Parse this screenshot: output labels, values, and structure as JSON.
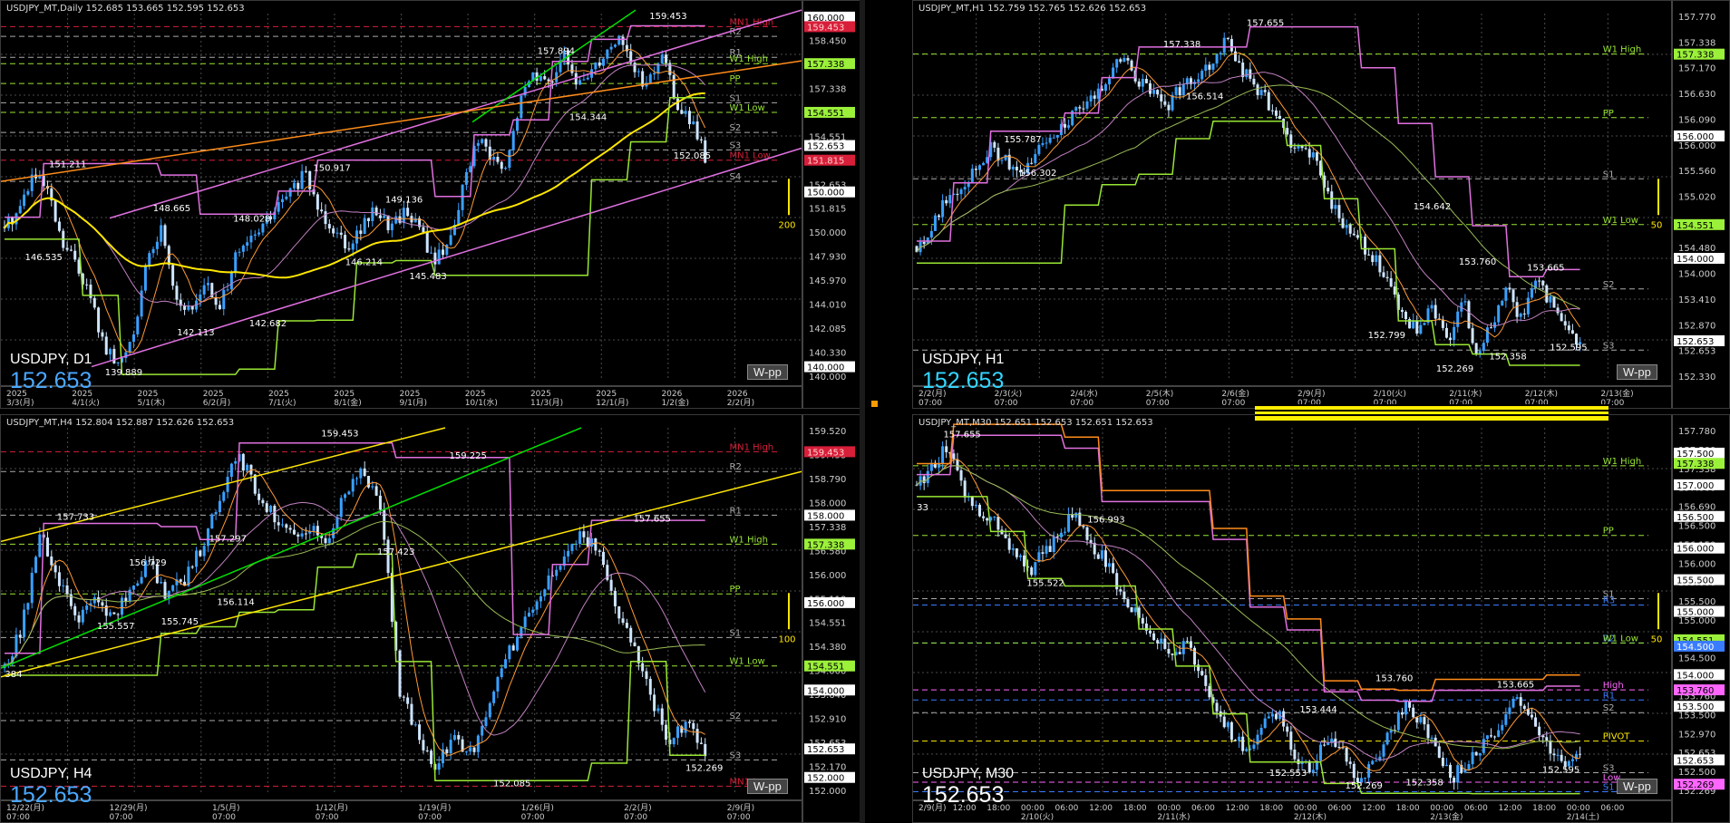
{
  "colors": {
    "bull": "#3aa0ff",
    "bear": "#cfe6ff",
    "green": "#99e633",
    "violet": "#e070e0",
    "yellow": "#ffe600",
    "orange": "#ff8c1a",
    "red": "#d81f3a",
    "lime": "#00e000",
    "grid": "#4a4a4a",
    "pink": "#ff66ff"
  },
  "charts": [
    {
      "id": "d1",
      "header": "USDJPY_MT,Daily  152.685 153.665 152.595 152.653",
      "symbol": "USDJPY, D1",
      "price": "152.653",
      "price_color": "blue",
      "wpp": "W-pp",
      "scale": {
        "max": 160.2,
        "min": 139.2
      },
      "axis": [
        "160.000",
        "158.450",
        "157.660",
        "157.338",
        "155.735",
        "154.551",
        "153.775",
        "152.653",
        "151.815",
        "150.000",
        "147.930",
        "145.970",
        "144.010",
        "142.085",
        "140.330",
        "140.000"
      ],
      "axis_boxes": [
        {
          "v": "160.000",
          "p": 160.0,
          "bg": "#ffffff",
          "fg": "#000"
        },
        {
          "v": "159.453",
          "p": 159.453,
          "bg": "#d81f3a",
          "fg": "#ffd0d0"
        },
        {
          "v": "157.338",
          "p": 157.338,
          "bg": "#9bf03a",
          "fg": "#000"
        },
        {
          "v": "154.551",
          "p": 154.551,
          "bg": "#9bf03a",
          "fg": "#000"
        },
        {
          "v": "152.653",
          "p": 152.653,
          "bg": "#ffffff",
          "fg": "#000"
        },
        {
          "v": "151.815",
          "p": 151.815,
          "bg": "#d81f3a",
          "fg": "#ffd0d0"
        },
        {
          "v": "150.000",
          "p": 150.0,
          "bg": "#ffffff",
          "fg": "#000"
        },
        {
          "v": "140.000",
          "p": 140.0,
          "bg": "#ffffff",
          "fg": "#000"
        }
      ],
      "levels": [
        {
          "name": "MN1 High",
          "price": 159.453,
          "color": "#d81f3a"
        },
        {
          "name": "R2",
          "price": 158.9,
          "color": "#aaaaaa"
        },
        {
          "name": "R1",
          "price": 157.7,
          "color": "#aaaaaa"
        },
        {
          "name": "W1 High",
          "price": 157.338,
          "color": "#99e633"
        },
        {
          "name": "PP",
          "price": 156.2,
          "color": "#99e633"
        },
        {
          "name": "S1",
          "price": 155.1,
          "color": "#aaaaaa"
        },
        {
          "name": "W1 Low",
          "price": 154.551,
          "color": "#99e633"
        },
        {
          "name": "S2",
          "price": 153.4,
          "color": "#aaaaaa"
        },
        {
          "name": "S3",
          "price": 152.4,
          "color": "#aaaaaa"
        },
        {
          "name": "MN1 Low",
          "price": 151.815,
          "color": "#d81f3a"
        },
        {
          "name": "S4",
          "price": 150.6,
          "color": "#aaaaaa"
        }
      ],
      "annotations": [
        {
          "t": "159.453",
          "x": 0.81,
          "p": 159.9
        },
        {
          "t": "157.894",
          "x": 0.67,
          "p": 157.9
        },
        {
          "t": "154.344",
          "x": 0.71,
          "p": 154.1
        },
        {
          "t": "152.085",
          "x": 0.84,
          "p": 151.9
        },
        {
          "t": "151.211",
          "x": 0.06,
          "p": 151.4
        },
        {
          "t": "150.917",
          "x": 0.39,
          "p": 151.2
        },
        {
          "t": "148.665",
          "x": 0.19,
          "p": 148.9
        },
        {
          "t": "149.136",
          "x": 0.48,
          "p": 149.4
        },
        {
          "t": "148.028",
          "x": 0.29,
          "p": 148.3
        },
        {
          "t": "146.535",
          "x": 0.03,
          "p": 146.1
        },
        {
          "t": "146.214",
          "x": 0.43,
          "p": 145.8
        },
        {
          "t": "145.483",
          "x": 0.51,
          "p": 145.0
        },
        {
          "t": "142.113",
          "x": 0.22,
          "p": 141.8
        },
        {
          "t": "142.682",
          "x": 0.31,
          "p": 142.3
        },
        {
          "t": "139.889",
          "x": 0.13,
          "p": 139.5
        }
      ],
      "scale_bar": "200",
      "x_labels": [
        "2025\n3/3(月)",
        "2025\n4/1(火)",
        "2025\n5/1(木)",
        "2025\n6/2(月)",
        "2025\n7/1(火)",
        "2025\n8/1(金)",
        "2025\n9/1(月)",
        "2025\n10/1(水)",
        "2025\n11/3(月)",
        "2025\n12/1(月)",
        "2026\n1/2(金)",
        "2026\n2/2(月)"
      ],
      "path": [
        148,
        149,
        151,
        150,
        147,
        146,
        144,
        141,
        140,
        142,
        146,
        148,
        144,
        143,
        145,
        143,
        146,
        147,
        148,
        149,
        150,
        151,
        149,
        148,
        147,
        148,
        149,
        148,
        149,
        148,
        146,
        147,
        150,
        153,
        152,
        151,
        155,
        157,
        156,
        158,
        156,
        157,
        158,
        159,
        157,
        156,
        158,
        155,
        154,
        152
      ]
    },
    {
      "id": "h1",
      "header": "USDJPY_MT,H1  152.759 152.765 152.626 152.653",
      "symbol": "USDJPY, H1",
      "price": "152.653",
      "price_color": "cyan",
      "wpp": "W-pp",
      "scale": {
        "max": 158.0,
        "min": 152.0
      },
      "axis": [
        "157.770",
        "157.338",
        "157.170",
        "156.630",
        "156.090",
        "156.000",
        "155.560",
        "155.020",
        "154.551",
        "154.480",
        "154.000",
        "153.410",
        "152.870",
        "152.653",
        "152.330"
      ],
      "axis_boxes": [
        {
          "v": "157.338",
          "p": 157.338,
          "bg": "#9bf03a",
          "fg": "#000"
        },
        {
          "v": "156.000",
          "p": 156.0,
          "bg": "#ffffff",
          "fg": "#000"
        },
        {
          "v": "154.551",
          "p": 154.551,
          "bg": "#9bf03a",
          "fg": "#000"
        },
        {
          "v": "154.000",
          "p": 154.0,
          "bg": "#ffffff",
          "fg": "#000"
        },
        {
          "v": "152.653",
          "p": 152.653,
          "bg": "#ffffff",
          "fg": "#000"
        }
      ],
      "levels": [
        {
          "name": "W1 High",
          "price": 157.338,
          "color": "#99e633"
        },
        {
          "name": "PP",
          "price": 156.3,
          "color": "#99e633"
        },
        {
          "name": "S1",
          "price": 155.3,
          "color": "#aaaaaa"
        },
        {
          "name": "W1 Low",
          "price": 154.551,
          "color": "#99e633"
        },
        {
          "name": "S2",
          "price": 153.5,
          "color": "#aaaaaa"
        },
        {
          "name": "S3",
          "price": 152.5,
          "color": "#aaaaaa"
        }
      ],
      "annotations": [
        {
          "t": "157.655",
          "x": 0.44,
          "p": 157.8
        },
        {
          "t": "157.338",
          "x": 0.33,
          "p": 157.45
        },
        {
          "t": "156.514",
          "x": 0.36,
          "p": 156.6
        },
        {
          "t": "155.787",
          "x": 0.12,
          "p": 155.9
        },
        {
          "t": "156.302",
          "x": 0.14,
          "p": 155.35
        },
        {
          "t": "154.642",
          "x": 0.66,
          "p": 154.8
        },
        {
          "t": "153.760",
          "x": 0.72,
          "p": 153.9
        },
        {
          "t": "153.665",
          "x": 0.81,
          "p": 153.8
        },
        {
          "t": "152.799",
          "x": 0.6,
          "p": 152.7
        },
        {
          "t": "152.358",
          "x": 0.76,
          "p": 152.35
        },
        {
          "t": "152.269",
          "x": 0.69,
          "p": 152.15
        },
        {
          "t": "152.595",
          "x": 0.84,
          "p": 152.5
        }
      ],
      "scale_bar": "50",
      "x_labels": [
        "2/2(月)\n07:00",
        "2/3(火)\n07:00",
        "2/4(水)\n07:00",
        "2/5(木)\n07:00",
        "2/6(金)\n07:00",
        "2/9(月)\n07:00",
        "2/10(火)\n07:00",
        "2/11(水)\n07:00",
        "2/12(木)\n07:00",
        "2/13(金)\n07:00"
      ],
      "path": [
        154.2,
        154.5,
        155.0,
        155.2,
        155.5,
        155.8,
        155.6,
        155.3,
        155.7,
        156.0,
        156.2,
        156.4,
        156.6,
        157.0,
        157.3,
        156.9,
        156.7,
        156.5,
        156.8,
        157.0,
        157.2,
        157.6,
        157.1,
        156.8,
        156.5,
        156.0,
        155.8,
        155.6,
        155.0,
        154.5,
        154.3,
        154.0,
        153.6,
        153.0,
        152.8,
        153.2,
        152.6,
        153.4,
        152.4,
        152.9,
        153.5,
        153.0,
        153.6,
        153.3,
        152.8,
        152.6
      ]
    },
    {
      "id": "h4",
      "header": "USDJPY_MT,H4  152.804 152.887 152.626 152.653",
      "symbol": "USDJPY, H4",
      "price": "152.653",
      "price_color": "blue",
      "wpp": "W-pp",
      "scale": {
        "max": 160.0,
        "min": 151.6
      },
      "axis": [
        "159.520",
        "159.453",
        "158.790",
        "158.000",
        "157.338",
        "156.580",
        "156.000",
        "155.110",
        "154.551",
        "154.380",
        "154.000",
        "153.640",
        "152.910",
        "152.653",
        "152.170",
        "152.000"
      ],
      "axis_boxes": [
        {
          "v": "159.453",
          "p": 159.453,
          "bg": "#d81f3a",
          "fg": "#ffd0d0"
        },
        {
          "v": "158.000",
          "p": 158.0,
          "bg": "#ffffff",
          "fg": "#000"
        },
        {
          "v": "157.338",
          "p": 157.338,
          "bg": "#9bf03a",
          "fg": "#000"
        },
        {
          "v": "156.000",
          "p": 156.0,
          "bg": "#ffffff",
          "fg": "#000"
        },
        {
          "v": "154.551",
          "p": 154.551,
          "bg": "#9bf03a",
          "fg": "#000"
        },
        {
          "v": "154.000",
          "p": 154.0,
          "bg": "#ffffff",
          "fg": "#000"
        },
        {
          "v": "152.653",
          "p": 152.653,
          "bg": "#ffffff",
          "fg": "#000"
        },
        {
          "v": "152.000",
          "p": 152.0,
          "bg": "#ffffff",
          "fg": "#000"
        }
      ],
      "levels": [
        {
          "name": "MN1 High",
          "price": 159.453,
          "color": "#d81f3a"
        },
        {
          "name": "R2",
          "price": 159.0,
          "color": "#aaaaaa"
        },
        {
          "name": "R1",
          "price": 158.0,
          "color": "#aaaaaa"
        },
        {
          "name": "W1 High",
          "price": 157.338,
          "color": "#99e633"
        },
        {
          "name": "PP",
          "price": 156.2,
          "color": "#99e633"
        },
        {
          "name": "S1",
          "price": 155.2,
          "color": "#aaaaaa"
        },
        {
          "name": "W1 Low",
          "price": 154.551,
          "color": "#99e633"
        },
        {
          "name": "S2",
          "price": 153.3,
          "color": "#aaaaaa"
        },
        {
          "name": "S3",
          "price": 152.4,
          "color": "#aaaaaa"
        },
        {
          "name": "MN1 Low",
          "price": 151.8,
          "color": "#d81f3a"
        }
      ],
      "annotations": [
        {
          "t": "159.453",
          "x": 0.4,
          "p": 159.8
        },
        {
          "t": "159.225",
          "x": 0.56,
          "p": 159.3
        },
        {
          "t": "157.733",
          "x": 0.07,
          "p": 157.9
        },
        {
          "t": "157.297",
          "x": 0.26,
          "p": 157.4
        },
        {
          "t": "157.423",
          "x": 0.47,
          "p": 157.1
        },
        {
          "t": "157.655",
          "x": 0.79,
          "p": 157.85
        },
        {
          "t": "156.729",
          "x": 0.16,
          "p": 156.85
        },
        {
          "t": "155.557",
          "x": 0.12,
          "p": 155.4
        },
        {
          "t": "156.114",
          "x": 0.27,
          "p": 155.95
        },
        {
          "t": "155.745",
          "x": 0.2,
          "p": 155.5
        },
        {
          "t": "384",
          "x": 0.005,
          "p": 154.3
        },
        {
          "t": "152.085",
          "x": 0.615,
          "p": 151.8
        },
        {
          "t": "152.269",
          "x": 0.855,
          "p": 152.15
        }
      ],
      "scale_bar": "100",
      "x_labels": [
        "12/22(月)\n07:00",
        "12/29(月)\n07:00",
        "1/5(月)\n07:00",
        "1/12(月)\n07:00",
        "1/19(月)\n07:00",
        "1/26(月)\n07:00",
        "2/2(月)\n07:00",
        "2/9(月)\n07:00"
      ],
      "path": [
        154.5,
        155.5,
        157.5,
        156.5,
        155.6,
        156.0,
        155.7,
        156.3,
        157.0,
        156.2,
        156.5,
        157.3,
        158.5,
        159.4,
        158.6,
        158.0,
        157.5,
        157.8,
        157.4,
        158.6,
        159.0,
        158.0,
        154.0,
        153.0,
        152.2,
        153.0,
        152.5,
        153.6,
        154.8,
        155.6,
        156.4,
        156.9,
        157.6,
        157.2,
        156.0,
        155.0,
        153.8,
        152.8,
        153.3,
        152.6
      ]
    },
    {
      "id": "m30",
      "header": "USDJPY_MT,M30  152.651 152.653 152.651 152.653",
      "symbol": "USDJPY, M30",
      "price": "152.653",
      "price_color": "white",
      "wpp": "W-pp",
      "scale": {
        "max": 157.9,
        "min": 152.1
      },
      "axis": [
        "157.780",
        "157.500",
        "157.338",
        "157.000",
        "156.690",
        "156.500",
        "156.150",
        "156.000",
        "155.600",
        "155.500",
        "155.000",
        "154.551",
        "154.500",
        "154.000",
        "153.760",
        "153.500",
        "152.970",
        "152.653",
        "152.500",
        "152.269"
      ],
      "axis_boxes": [
        {
          "v": "157.500",
          "p": 157.5,
          "bg": "#ffffff",
          "fg": "#000"
        },
        {
          "v": "157.338",
          "p": 157.338,
          "bg": "#9bf03a",
          "fg": "#000"
        },
        {
          "v": "157.000",
          "p": 157.0,
          "bg": "#ffffff",
          "fg": "#000"
        },
        {
          "v": "156.500",
          "p": 156.5,
          "bg": "#ffffff",
          "fg": "#000"
        },
        {
          "v": "156.000",
          "p": 156.0,
          "bg": "#ffffff",
          "fg": "#000"
        },
        {
          "v": "155.500",
          "p": 155.5,
          "bg": "#ffffff",
          "fg": "#000"
        },
        {
          "v": "155.000",
          "p": 155.0,
          "bg": "#ffffff",
          "fg": "#000"
        },
        {
          "v": "154.551",
          "p": 154.551,
          "bg": "#9bf03a",
          "fg": "#000"
        },
        {
          "v": "154.500",
          "p": 154.45,
          "bg": "#3a7cff",
          "fg": "#fff"
        },
        {
          "v": "154.000",
          "p": 154.0,
          "bg": "#ffffff",
          "fg": "#000"
        },
        {
          "v": "153.760",
          "p": 153.76,
          "bg": "#ff66ff",
          "fg": "#000"
        },
        {
          "v": "153.500",
          "p": 153.5,
          "bg": "#ffffff",
          "fg": "#000"
        },
        {
          "v": "152.653",
          "p": 152.653,
          "bg": "#ffffff",
          "fg": "#000"
        },
        {
          "v": "152.269",
          "p": 152.269,
          "bg": "#ff66ff",
          "fg": "#000"
        }
      ],
      "levels": [
        {
          "name": "W1 High",
          "price": 157.3,
          "color": "#99e633"
        },
        {
          "name": "PP",
          "price": 156.2,
          "color": "#99e633"
        },
        {
          "name": "S1",
          "price": 155.2,
          "color": "#aaaaaa"
        },
        {
          "name": "R3",
          "price": 155.1,
          "color": "#3a7cff"
        },
        {
          "name": "R2",
          "price": 154.5,
          "color": "#3a7cff"
        },
        {
          "name": "W1 Low",
          "price": 154.5,
          "color": "#99e633"
        },
        {
          "name": "High",
          "price": 153.76,
          "color": "#ff66ff"
        },
        {
          "name": "R1",
          "price": 153.6,
          "color": "#3a7cff"
        },
        {
          "name": "S2",
          "price": 153.4,
          "color": "#aaaaaa"
        },
        {
          "name": "PIVOT",
          "price": 152.95,
          "color": "#ffee00"
        },
        {
          "name": "S3",
          "price": 152.45,
          "color": "#aaaaaa"
        },
        {
          "name": "Low",
          "price": 152.3,
          "color": "#ff66ff"
        },
        {
          "name": "S1",
          "price": 152.15,
          "color": "#3a7cff"
        }
      ],
      "annotations": [
        {
          "t": "157.655",
          "x": 0.04,
          "p": 157.75
        },
        {
          "t": "156.993",
          "x": 0.23,
          "p": 156.4
        },
        {
          "t": "155.522",
          "x": 0.15,
          "p": 155.4
        },
        {
          "t": "33",
          "x": 0.005,
          "p": 156.6
        },
        {
          "t": "153.444",
          "x": 0.51,
          "p": 153.4
        },
        {
          "t": "153.760",
          "x": 0.61,
          "p": 153.9
        },
        {
          "t": "153.665",
          "x": 0.77,
          "p": 153.8
        },
        {
          "t": "152.553",
          "x": 0.47,
          "p": 152.4
        },
        {
          "t": "152.269",
          "x": 0.57,
          "p": 152.2
        },
        {
          "t": "152.358",
          "x": 0.65,
          "p": 152.25
        },
        {
          "t": "152.595",
          "x": 0.83,
          "p": 152.45
        }
      ],
      "scale_bar": "50",
      "x_labels": [
        "2/9(月)",
        "12:00",
        "18:00",
        "00:00\n2/10(火)",
        "06:00",
        "12:00",
        "18:00",
        "00:00\n2/11(水)",
        "06:00",
        "12:00",
        "18:00",
        "00:00\n2/12(木)",
        "06:00",
        "12:00",
        "18:00",
        "00:00\n2/13(金)",
        "06:00",
        "12:00",
        "18:00",
        "00:00\n2/14(土)",
        "06:00"
      ],
      "path": [
        157.0,
        157.3,
        157.6,
        156.9,
        156.6,
        156.4,
        156.0,
        155.6,
        155.9,
        156.2,
        156.6,
        156.0,
        155.8,
        155.2,
        155.0,
        154.6,
        154.3,
        154.5,
        154.0,
        153.5,
        153.0,
        152.8,
        153.2,
        153.4,
        152.7,
        152.5,
        153.0,
        152.8,
        152.3,
        152.6,
        153.1,
        153.6,
        153.2,
        152.8,
        152.4,
        152.7,
        152.9,
        153.2,
        153.6,
        153.3,
        152.9,
        152.6,
        152.7
      ]
    }
  ]
}
